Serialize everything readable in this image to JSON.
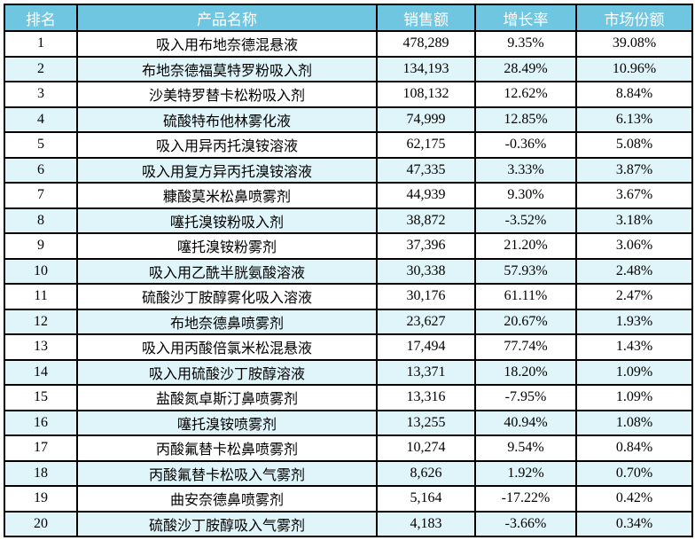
{
  "table": {
    "columns": [
      {
        "key": "rank",
        "label": "排名"
      },
      {
        "key": "name",
        "label": "产品名称"
      },
      {
        "key": "sales",
        "label": "销售额"
      },
      {
        "key": "growth",
        "label": "增长率"
      },
      {
        "key": "share",
        "label": "市场份额"
      }
    ],
    "rows": [
      {
        "rank": "1",
        "name": "吸入用布地奈德混悬液",
        "sales": "478,289",
        "growth": "9.35%",
        "share": "39.08%"
      },
      {
        "rank": "2",
        "name": "布地奈德福莫特罗粉吸入剂",
        "sales": "134,193",
        "growth": "28.49%",
        "share": "10.96%"
      },
      {
        "rank": "3",
        "name": "沙美特罗替卡松粉吸入剂",
        "sales": "108,132",
        "growth": "12.62%",
        "share": "8.84%"
      },
      {
        "rank": "4",
        "name": "硫酸特布他林雾化液",
        "sales": "74,999",
        "growth": "12.85%",
        "share": "6.13%"
      },
      {
        "rank": "5",
        "name": "吸入用异丙托溴铵溶液",
        "sales": "62,175",
        "growth": "-0.36%",
        "share": "5.08%"
      },
      {
        "rank": "6",
        "name": "吸入用复方异丙托溴铵溶液",
        "sales": "47,335",
        "growth": "3.33%",
        "share": "3.87%"
      },
      {
        "rank": "7",
        "name": "糠酸莫米松鼻喷雾剂",
        "sales": "44,939",
        "growth": "9.30%",
        "share": "3.67%"
      },
      {
        "rank": "8",
        "name": "噻托溴铵粉吸入剂",
        "sales": "38,872",
        "growth": "-3.52%",
        "share": "3.18%"
      },
      {
        "rank": "9",
        "name": "噻托溴铵粉雾剂",
        "sales": "37,396",
        "growth": "21.20%",
        "share": "3.06%"
      },
      {
        "rank": "10",
        "name": "吸入用乙酰半胱氨酸溶液",
        "sales": "30,338",
        "growth": "57.93%",
        "share": "2.48%"
      },
      {
        "rank": "11",
        "name": "硫酸沙丁胺醇雾化吸入溶液",
        "sales": "30,176",
        "growth": "61.11%",
        "share": "2.47%"
      },
      {
        "rank": "12",
        "name": "布地奈德鼻喷雾剂",
        "sales": "23,627",
        "growth": "20.67%",
        "share": "1.93%"
      },
      {
        "rank": "13",
        "name": "吸入用丙酸倍氯米松混悬液",
        "sales": "17,494",
        "growth": "77.74%",
        "share": "1.43%"
      },
      {
        "rank": "14",
        "name": "吸入用硫酸沙丁胺醇溶液",
        "sales": "13,371",
        "growth": "18.20%",
        "share": "1.09%"
      },
      {
        "rank": "15",
        "name": "盐酸氮卓斯汀鼻喷雾剂",
        "sales": "13,316",
        "growth": "-7.95%",
        "share": "1.09%"
      },
      {
        "rank": "16",
        "name": "噻托溴铵喷雾剂",
        "sales": "13,255",
        "growth": "40.94%",
        "share": "1.08%"
      },
      {
        "rank": "17",
        "name": "丙酸氟替卡松鼻喷雾剂",
        "sales": "10,274",
        "growth": "9.54%",
        "share": "0.84%"
      },
      {
        "rank": "18",
        "name": "丙酸氟替卡松吸入气雾剂",
        "sales": "8,626",
        "growth": "1.92%",
        "share": "0.70%"
      },
      {
        "rank": "19",
        "name": "曲安奈德鼻喷雾剂",
        "sales": "5,164",
        "growth": "-17.22%",
        "share": "0.42%"
      },
      {
        "rank": "20",
        "name": "硫酸沙丁胺醇吸入气雾剂",
        "sales": "4,183",
        "growth": "-3.66%",
        "share": "0.34%"
      }
    ],
    "colors": {
      "header_bg": "#6FC6E0",
      "header_text": "#FFFFFF",
      "row_alt_bg": "#DFF5FA",
      "border": "#000000"
    }
  }
}
